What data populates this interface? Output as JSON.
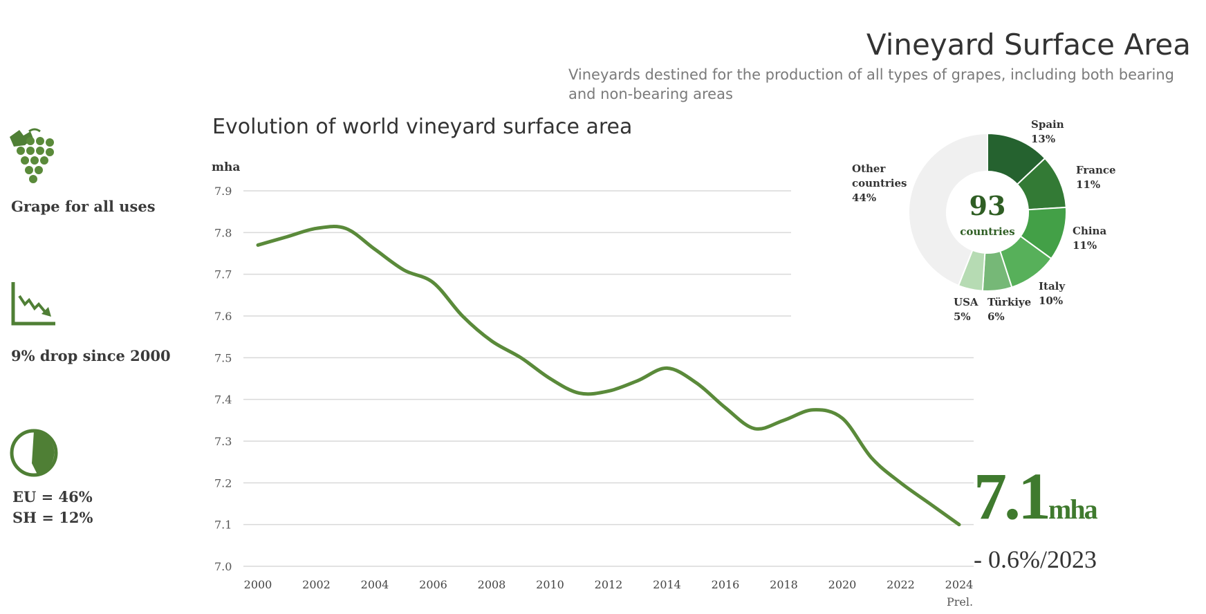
{
  "header": {
    "title": "Vineyard Surface Area",
    "subtitle": "Vineyards destined for the production of all types of grapes, including both bearing and non-bearing areas"
  },
  "sidebar": {
    "items": [
      {
        "icon": "grape-icon",
        "label": "Grape for all uses"
      },
      {
        "icon": "declining-chart-icon",
        "label": "9% drop since 2000"
      },
      {
        "icon": "pie-share-icon",
        "label_line1": "EU = 46%",
        "label_line2": "SH = 12%"
      }
    ]
  },
  "kpi": {
    "value": "7.1",
    "unit": "mha",
    "change": "- 0.6%/2023"
  },
  "colors": {
    "line": "#5a8a3a",
    "accent": "#3f7a2e",
    "grid": "#d9d9d9"
  },
  "chart_data": [
    {
      "type": "line",
      "title": "Evolution of world vineyard surface area",
      "ylabel": "mha",
      "xlabel": "",
      "ylim": [
        7.0,
        7.9
      ],
      "yticks": [
        "7.0",
        "7.1",
        "7.2",
        "7.3",
        "7.4",
        "7.5",
        "7.6",
        "7.7",
        "7.8",
        "7.9"
      ],
      "xticks": [
        "2000",
        "2002",
        "2004",
        "2006",
        "2008",
        "2010",
        "2012",
        "2014",
        "2016",
        "2018",
        "2020",
        "2022",
        "2024"
      ],
      "xtick_note": "Prel.",
      "grid": true,
      "x": [
        2000,
        2001,
        2002,
        2003,
        2004,
        2005,
        2006,
        2007,
        2008,
        2009,
        2010,
        2011,
        2012,
        2013,
        2014,
        2015,
        2016,
        2017,
        2018,
        2019,
        2020,
        2021,
        2022,
        2023,
        2024
      ],
      "series": [
        {
          "name": "World vineyard surface area",
          "values": [
            7.77,
            7.79,
            7.81,
            7.81,
            7.76,
            7.71,
            7.68,
            7.6,
            7.54,
            7.5,
            7.45,
            7.415,
            7.42,
            7.445,
            7.475,
            7.44,
            7.38,
            7.33,
            7.35,
            7.375,
            7.355,
            7.26,
            7.2,
            7.15,
            7.1
          ]
        }
      ]
    },
    {
      "type": "pie",
      "center_value": "93",
      "center_label": "countries",
      "slices": [
        {
          "label": "Spain",
          "pct_label": "13%",
          "value": 13,
          "color": "#25622f"
        },
        {
          "label": "France",
          "pct_label": "11%",
          "value": 11,
          "color": "#337a35"
        },
        {
          "label": "China",
          "pct_label": "11%",
          "value": 11,
          "color": "#43a047"
        },
        {
          "label": "Italy",
          "pct_label": "10%",
          "value": 10,
          "color": "#57b05a"
        },
        {
          "label": "Türkiye",
          "pct_label": "6%",
          "value": 6,
          "color": "#76b877"
        },
        {
          "label": "USA",
          "pct_label": "5%",
          "value": 5,
          "color": "#b6dbb3"
        },
        {
          "label": "Other countries",
          "pct_label": "44%",
          "value": 44,
          "color": "#f0f0f0"
        }
      ]
    }
  ]
}
